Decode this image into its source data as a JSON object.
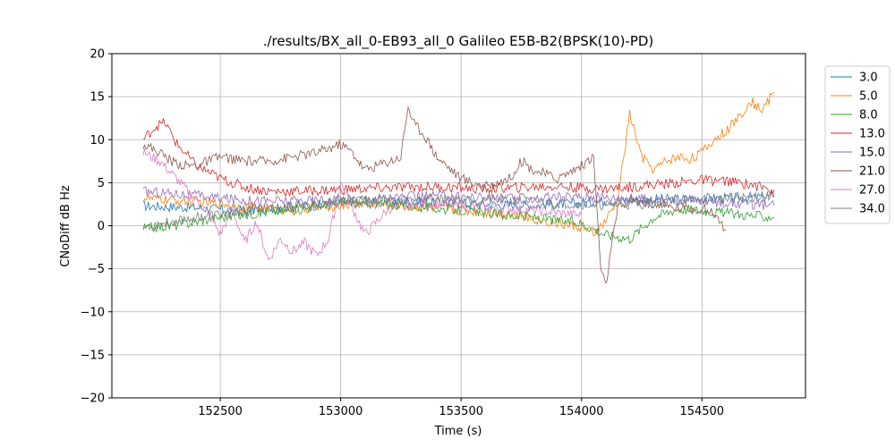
{
  "chart_data": {
    "type": "line",
    "title": "./results/BX_all_0-EB93_all_0 Galileo E5B-B2(BPSK(10)-PD)",
    "xlabel": "Time (s)",
    "ylabel": "CNoDiff dB Hz",
    "xlim": [
      152050,
      154930
    ],
    "ylim": [
      -20,
      20
    ],
    "xticks": [
      152500,
      153000,
      153500,
      154000,
      154500
    ],
    "yticks": [
      -20,
      -15,
      -10,
      -5,
      0,
      5,
      10,
      15,
      20
    ],
    "grid": true,
    "legend_position": "right",
    "series": [
      {
        "name": "3.0",
        "color": "#1f77b4",
        "x": [
          152180,
          152300,
          152400,
          152500,
          152600,
          152700,
          152800,
          152900,
          153000,
          153100,
          153200,
          153300,
          153400,
          153500,
          153600,
          153700,
          153800,
          153900,
          154000,
          154100,
          154200,
          154300,
          154400,
          154500,
          154600,
          154700,
          154800
        ],
        "y": [
          2.3,
          2.2,
          2.1,
          1.9,
          1.8,
          2.0,
          2.2,
          2.4,
          2.5,
          2.6,
          2.7,
          2.8,
          2.7,
          2.6,
          2.5,
          2.4,
          2.4,
          2.5,
          2.6,
          2.9,
          3.0,
          3.1,
          3.1,
          3.2,
          3.2,
          3.3,
          3.4
        ]
      },
      {
        "name": "5.0",
        "color": "#ff7f0e",
        "x": [
          152180,
          152300,
          152400,
          152500,
          152600,
          152700,
          152800,
          152900,
          153000,
          153100,
          153200,
          153300,
          153400,
          153500,
          153600,
          153700,
          153800,
          153900,
          154000,
          154050,
          154100,
          154150,
          154200,
          154250,
          154300,
          154350,
          154400,
          154450,
          154500,
          154550,
          154600,
          154650,
          154700,
          154750,
          154800
        ],
        "y": [
          3.2,
          3.0,
          2.8,
          2.6,
          2.3,
          2.0,
          1.9,
          2.1,
          2.4,
          2.6,
          2.4,
          2.2,
          2.0,
          1.8,
          1.6,
          1.4,
          0.8,
          0.3,
          -0.2,
          -1.0,
          0.5,
          3.0,
          13.0,
          8.0,
          6.5,
          7.5,
          8.0,
          7.8,
          8.5,
          10.0,
          11.0,
          12.5,
          14.5,
          13.5,
          15.5
        ]
      },
      {
        "name": "8.0",
        "color": "#2ca02c",
        "x": [
          152180,
          152300,
          152400,
          152500,
          152600,
          152700,
          152800,
          152900,
          153000,
          153100,
          153200,
          153300,
          153400,
          153500,
          153600,
          153700,
          153800,
          153900,
          154000,
          154100,
          154200,
          154300,
          154400,
          154500,
          154600,
          154700,
          154800
        ],
        "y": [
          -0.3,
          0.0,
          0.5,
          1.0,
          1.3,
          1.6,
          1.8,
          2.3,
          3.0,
          2.8,
          2.5,
          2.3,
          2.0,
          1.8,
          1.5,
          1.2,
          1.0,
          0.6,
          0.3,
          -1.0,
          -1.5,
          1.0,
          2.0,
          1.8,
          1.5,
          1.2,
          1.0
        ]
      },
      {
        "name": "13.0",
        "color": "#d62728",
        "x": [
          152180,
          152230,
          152270,
          152320,
          152400,
          152500,
          152600,
          152700,
          152800,
          152900,
          153000,
          153100,
          153200,
          153300,
          153400,
          153500,
          153600,
          153700,
          153800,
          153900,
          154000,
          154100,
          154200,
          154300,
          154400,
          154500,
          154600,
          154700,
          154800
        ],
        "y": [
          10.0,
          11.5,
          12.0,
          9.5,
          7.0,
          5.5,
          4.5,
          4.0,
          4.0,
          4.1,
          4.2,
          4.3,
          4.4,
          4.5,
          4.5,
          4.4,
          4.3,
          4.4,
          4.5,
          4.6,
          4.4,
          4.3,
          4.5,
          4.8,
          5.0,
          5.3,
          5.2,
          4.8,
          4.2
        ]
      },
      {
        "name": "15.0",
        "color": "#9467bd",
        "x": [
          152180,
          152300,
          152400,
          152500,
          152600,
          152700,
          152800,
          152900,
          153000,
          153100,
          153200,
          153300,
          153400,
          153500,
          153600,
          153700,
          153800,
          153900,
          154000,
          154100,
          154200,
          154300,
          154400,
          154500,
          154600,
          154700,
          154800
        ],
        "y": [
          4.0,
          3.8,
          3.5,
          3.2,
          3.0,
          2.9,
          2.9,
          3.0,
          3.1,
          3.2,
          3.3,
          3.4,
          3.5,
          3.4,
          3.3,
          3.2,
          3.2,
          3.3,
          3.4,
          3.3,
          3.2,
          3.1,
          3.0,
          2.9,
          2.7,
          2.5,
          2.3
        ]
      },
      {
        "name": "21.0",
        "color": "#8c564b",
        "x": [
          152180,
          152250,
          152300,
          152350,
          152400,
          152450,
          152500,
          152600,
          152700,
          152800,
          152900,
          153000,
          153050,
          153100,
          153150,
          153200,
          153250,
          153280,
          153300,
          153350,
          153400,
          153500,
          153600,
          153700,
          153750,
          153800,
          153900,
          154000,
          154050,
          154080,
          154100,
          154150,
          154200,
          154300,
          154400,
          154500,
          154550,
          154600
        ],
        "y": [
          9.5,
          8.5,
          7.5,
          7.0,
          7.0,
          7.5,
          8.0,
          7.5,
          7.5,
          8.0,
          8.5,
          9.5,
          8.5,
          6.5,
          7.0,
          7.5,
          8.0,
          14.0,
          12.0,
          10.5,
          8.0,
          5.5,
          4.5,
          5.5,
          7.5,
          6.5,
          5.5,
          7.0,
          8.0,
          -5.0,
          -7.0,
          2.0,
          3.0,
          2.5,
          2.0,
          2.0,
          1.5,
          -0.5
        ]
      },
      {
        "name": "27.0",
        "color": "#e377c2",
        "x": [
          152180,
          152250,
          152300,
          152350,
          152400,
          152450,
          152500,
          152550,
          152600,
          152650,
          152700,
          152750,
          152800,
          152850,
          152900,
          152950,
          153000,
          153050,
          153100,
          153150,
          153200,
          153300,
          153400,
          153500,
          153600,
          153700,
          153800,
          153900,
          154000
        ],
        "y": [
          8.5,
          7.5,
          6.0,
          4.5,
          3.0,
          1.5,
          -1.0,
          2.0,
          -2.0,
          0.5,
          -4.0,
          -1.5,
          -3.0,
          -2.0,
          -3.5,
          -1.5,
          5.0,
          2.0,
          -1.0,
          0.5,
          2.0,
          2.5,
          2.5,
          2.3,
          2.1,
          2.0,
          1.8,
          1.5,
          1.2
        ]
      },
      {
        "name": "34.0",
        "color": "#7f7f7f",
        "x": [
          152180,
          152300,
          152400,
          152500,
          152600,
          152700,
          152800,
          152900,
          153000,
          153100,
          153200,
          153300,
          153400,
          153500,
          153600,
          153700,
          153800,
          153900,
          154000,
          154100,
          154200,
          154300,
          154400,
          154500,
          154600,
          154700,
          154800
        ],
        "y": [
          -0.2,
          0.5,
          1.0,
          1.3,
          1.6,
          2.0,
          2.3,
          2.5,
          2.7,
          2.9,
          3.0,
          3.1,
          3.2,
          3.1,
          3.0,
          2.9,
          2.8,
          2.6,
          2.5,
          2.4,
          2.5,
          2.6,
          2.8,
          3.0,
          3.1,
          3.3,
          3.5
        ]
      }
    ]
  }
}
